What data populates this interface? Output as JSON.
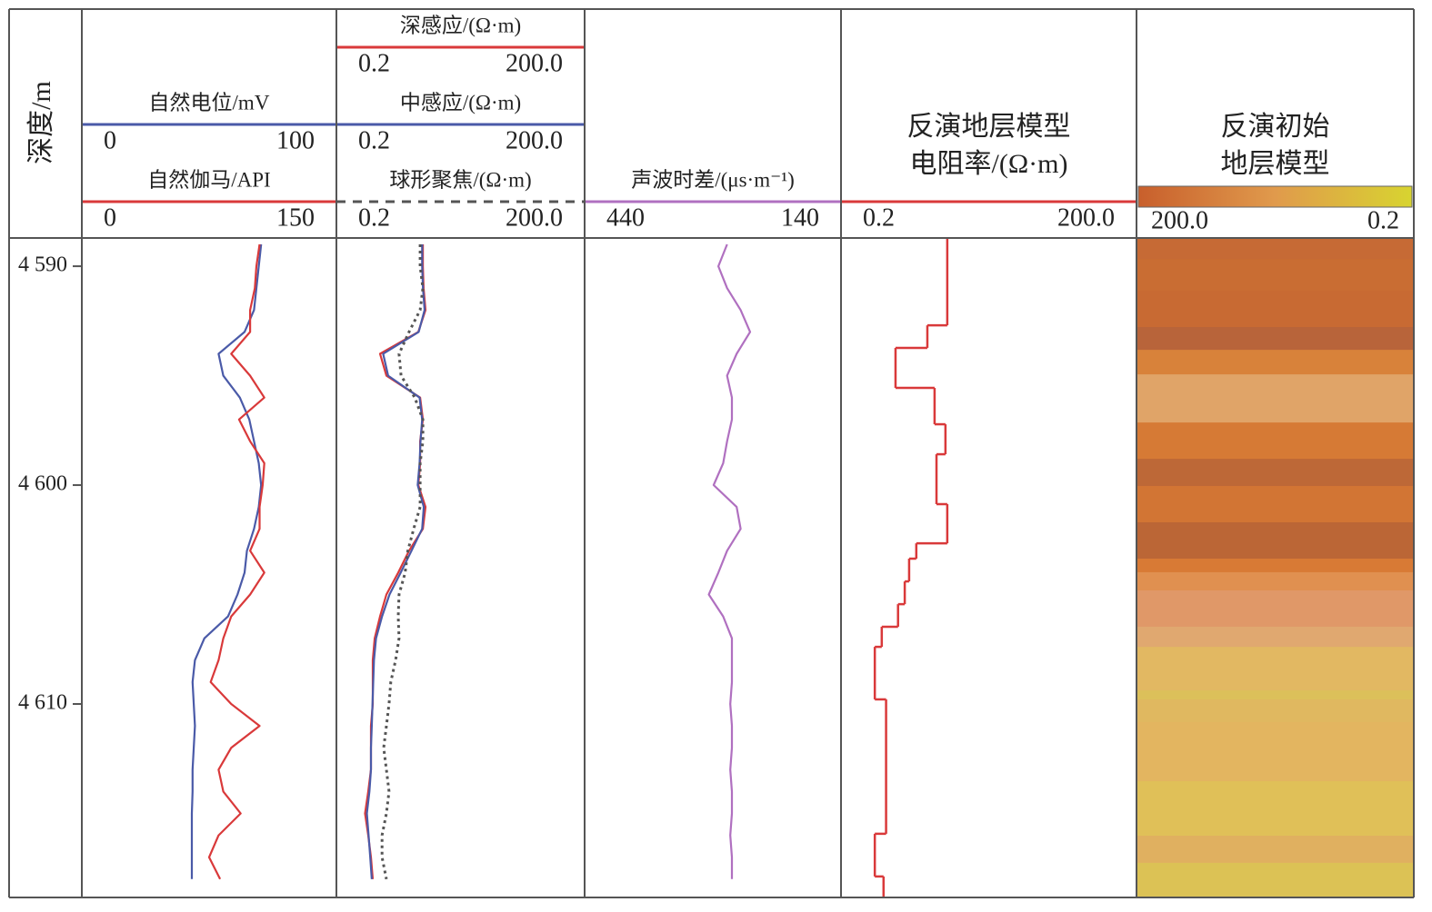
{
  "chart_data": {
    "type": "well-log",
    "depth_label": "深度/m",
    "ylim": [
      4588.71,
      4618.84
    ],
    "yticks": [
      {
        "value": 4590,
        "label": "4 590"
      },
      {
        "value": 4600,
        "label": "4 600"
      },
      {
        "value": 4610,
        "label": "4 610"
      }
    ],
    "depths": [
      4589,
      4590,
      4591,
      4592,
      4593,
      4594,
      4595,
      4596,
      4597,
      4598,
      4599,
      4600,
      4601,
      4602,
      4603,
      4604,
      4605,
      4606,
      4607,
      4608,
      4609,
      4610,
      4611,
      4612,
      4613,
      4614,
      4615,
      4616,
      4617,
      4618
    ],
    "tracks": [
      {
        "type": "curves",
        "series": [
          {
            "name": "自然电位/mV",
            "color": "#4a5aa8",
            "log": false,
            "dash": false,
            "xlim": [
              0,
              100
            ],
            "xticks": [
              0,
              100
            ],
            "values": [
              72,
              71,
              70,
              69,
              65,
              54,
              56,
              63,
              67,
              69,
              71,
              72,
              71,
              69,
              66,
              65,
              62,
              58,
              48,
              44,
              43,
              43.5,
              44,
              43.5,
              43,
              43,
              42.7,
              42.7,
              42.7,
              42.7
            ]
          },
          {
            "name": "自然伽马/API",
            "color": "#d9393a",
            "log": false,
            "dash": false,
            "xlim": [
              0,
              150
            ],
            "xticks": [
              0,
              150
            ],
            "values": [
              107,
              105,
              104,
              101,
              101,
              89,
              101,
              110,
              94,
              101,
              110,
              109,
              107,
              107,
              101,
              110,
              101,
              89,
              84,
              81,
              76,
              89,
              107,
              89,
              81,
              84,
              95,
              81,
              75,
              82
            ]
          }
        ]
      },
      {
        "type": "curves",
        "series": [
          {
            "name": "深感应/(Ω·m)",
            "color": "#d9393a",
            "log": true,
            "dash": false,
            "xlim": [
              0.2,
              200
            ],
            "xticks": [
              0.2,
              {
                "value": 200,
                "label": "200.0"
              }
            ],
            "values": [
              2.04,
              2.04,
              2.09,
              2.21,
              1.78,
              0.565,
              0.684,
              1.88,
              2.04,
              1.88,
              1.88,
              1.78,
              2.21,
              2.04,
              1.35,
              0.975,
              0.684,
              0.565,
              0.48,
              0.454,
              0.454,
              0.454,
              0.43,
              0.43,
              0.43,
              0.396,
              0.36,
              0.396,
              0.43,
              0.454
            ]
          },
          {
            "name": "中感应/(Ω·m)",
            "color": "#4a5aa8",
            "log": true,
            "dash": false,
            "xlim": [
              0.2,
              200
            ],
            "xticks": [
              0.2,
              {
                "value": 200,
                "label": "200.0"
              }
            ],
            "values": [
              2.0,
              2.0,
              2.05,
              2.15,
              1.8,
              0.62,
              0.72,
              1.85,
              2.0,
              1.9,
              1.85,
              1.75,
              2.1,
              2.0,
              1.45,
              1.05,
              0.75,
              0.6,
              0.5,
              0.47,
              0.46,
              0.45,
              0.44,
              0.43,
              0.43,
              0.41,
              0.38,
              0.4,
              0.42,
              0.44
            ]
          },
          {
            "name": "球形聚焦/(Ω·m)",
            "color": "#555555",
            "log": true,
            "dash": true,
            "xlim": [
              0.2,
              200
            ],
            "xticks": [
              0.2,
              {
                "value": 200,
                "label": "200.0"
              }
            ],
            "values": [
              1.88,
              1.88,
              2.04,
              1.88,
              1.35,
              1.0,
              1.06,
              1.6,
              2.04,
              2.04,
              1.88,
              1.88,
              1.88,
              1.55,
              1.3,
              1.2,
              1.0,
              0.975,
              1.0,
              0.9,
              0.78,
              0.74,
              0.684,
              0.63,
              0.684,
              0.74,
              0.684,
              0.6,
              0.6,
              0.684
            ]
          }
        ]
      },
      {
        "type": "curves",
        "series": [
          {
            "name": "声波时差/(μs·m⁻¹)",
            "color": "#b070c0",
            "log": false,
            "dash": false,
            "xlim": [
              440,
              140
            ],
            "xticks": [
              440,
              140
            ],
            "values": [
              272,
              283,
              272,
              255,
              243,
              260,
              272,
              266,
              266,
              272,
              277,
              289,
              260,
              255,
              272,
              283,
              295,
              277,
              266,
              266,
              266,
              268,
              266,
              266,
              268,
              266,
              266,
              268,
              266,
              266
            ]
          }
        ]
      },
      {
        "type": "step",
        "title_lines": [
          "反演地层模型",
          "电阻率/(Ω·m)"
        ],
        "color": "#d9393a",
        "log": true,
        "xlim": [
          0.2,
          200
        ],
        "xticks": [
          0.2,
          {
            "value": 200,
            "label": "200.0"
          }
        ],
        "bounds": [
          4588.71,
          4592.7,
          4593.73,
          4595.56,
          4597.22,
          4598.59,
          4600.87,
          4602.66,
          4603.36,
          4604.4,
          4605.44,
          4606.47,
          4607.39,
          4609.79,
          4615.93,
          4617.88,
          4618.84
        ],
        "values": [
          2.25,
          1.37,
          0.62,
          1.64,
          2.15,
          1.72,
          2.25,
          1.04,
          0.87,
          0.78,
          0.66,
          0.44,
          0.37,
          0.49,
          0.37,
          0.46
        ]
      },
      {
        "type": "model",
        "title_lines": [
          "反演初始",
          "地层模型"
        ],
        "colorbar": {
          "colors": [
            "#c85f2c",
            "#e09a4c",
            "#d8d430"
          ],
          "lim": [
            200,
            0.2
          ],
          "log": true,
          "ticks": [
            {
              "value": 200,
              "label": "200.0"
            },
            0.2
          ]
        },
        "bounds": [
          4588.71,
          4589.67,
          4591.12,
          4592.78,
          4593.82,
          4594.94,
          4597.14,
          4598.8,
          4600.04,
          4601.7,
          4603.36,
          4603.98,
          4604.81,
          4606.47,
          4607.39,
          4609.38,
          4609.79,
          4610.83,
          4613.53,
          4616.02,
          4617.26,
          4618.84
        ],
        "colors": [
          "#c66a35",
          "#c96d33",
          "#c86a33",
          "#b8643a",
          "#d8823a",
          "#e0a468",
          "#d67a35",
          "#bd6837",
          "#d27534",
          "#bb6636",
          "#d87a35",
          "#e09050",
          "#e09868",
          "#e0a870",
          "#e2b862",
          "#dcc05a",
          "#e0b860",
          "#e3b560",
          "#e0c058",
          "#e0b060",
          "#dcc255"
        ]
      }
    ]
  }
}
